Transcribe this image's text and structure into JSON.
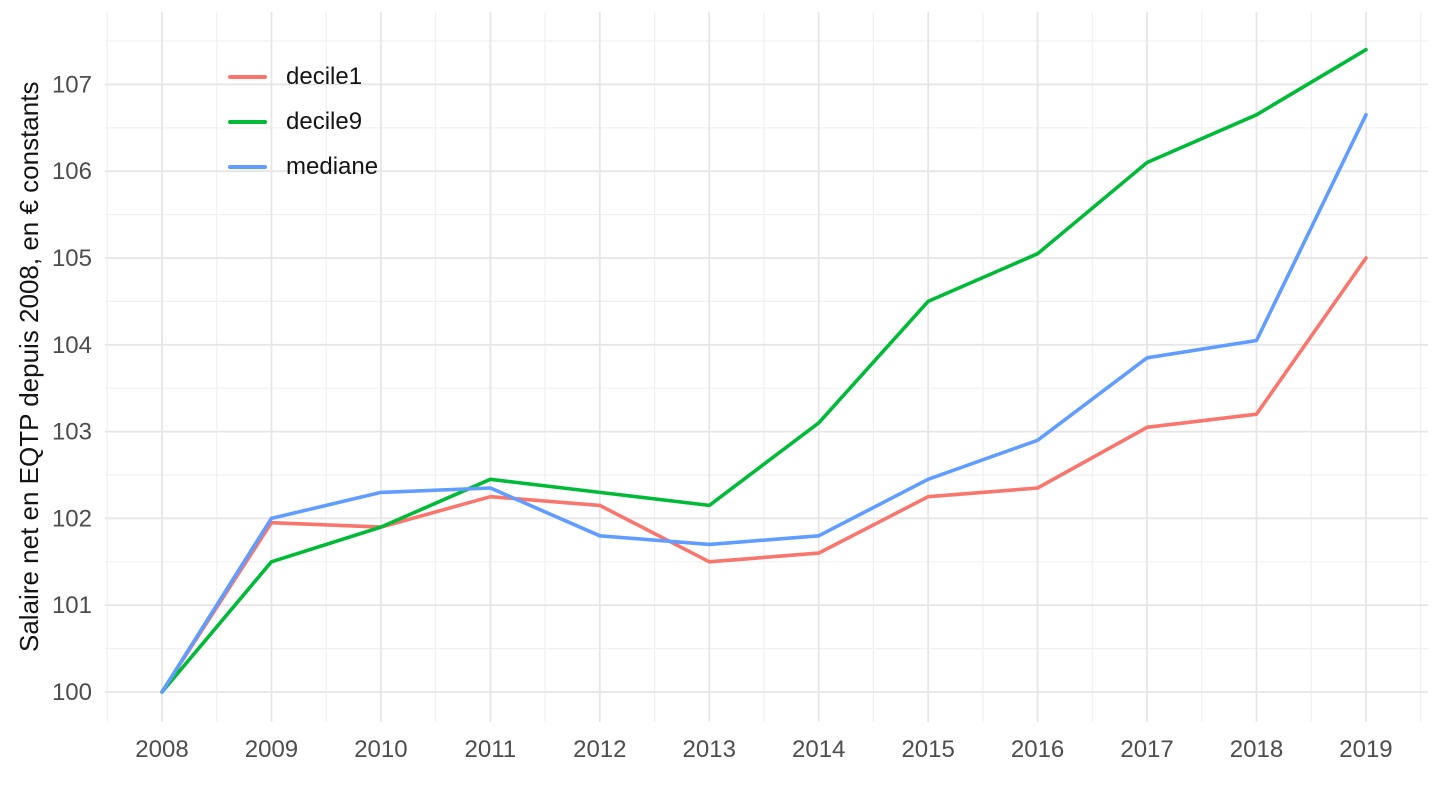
{
  "figure": {
    "title": "",
    "ylabel": "Salaire net en EQTP depuis 2008, en € constants",
    "xlabel": "",
    "background_color": "#ffffff",
    "grid_major_color": "#e6e6e6",
    "grid_minor_color": "#f0f0f0",
    "tick_text_color": "#4d4d4d"
  },
  "chart_data": {
    "type": "line",
    "title": "",
    "xlabel": "",
    "ylabel": "Salaire net en EQTP depuis 2008, en € constants",
    "x": [
      2008,
      2009,
      2010,
      2011,
      2012,
      2013,
      2014,
      2015,
      2016,
      2017,
      2018,
      2019
    ],
    "series": [
      {
        "name": "decile1",
        "color": "#F8766D",
        "values": [
          100,
          101.95,
          101.9,
          102.25,
          102.15,
          101.5,
          101.6,
          102.25,
          102.35,
          103.05,
          103.2,
          105.0
        ]
      },
      {
        "name": "decile9",
        "color": "#00BA38",
        "values": [
          100,
          101.5,
          101.9,
          102.45,
          102.3,
          102.15,
          103.1,
          104.5,
          105.05,
          106.1,
          106.65,
          107.4
        ]
      },
      {
        "name": "mediane",
        "color": "#619CFF",
        "values": [
          100,
          102.0,
          102.3,
          102.35,
          101.8,
          101.7,
          101.8,
          102.45,
          102.9,
          103.85,
          104.05,
          106.65
        ]
      }
    ],
    "xticks": [
      2008,
      2009,
      2010,
      2011,
      2012,
      2013,
      2014,
      2015,
      2016,
      2017,
      2018,
      2019
    ],
    "yticks": [
      100,
      101,
      102,
      103,
      104,
      105,
      106,
      107
    ],
    "xlim": [
      2007.48,
      2019.6
    ],
    "ylim": [
      99.65,
      107.83
    ],
    "grid": true,
    "minor_grid": true,
    "legend_position": "top-left-inside"
  }
}
